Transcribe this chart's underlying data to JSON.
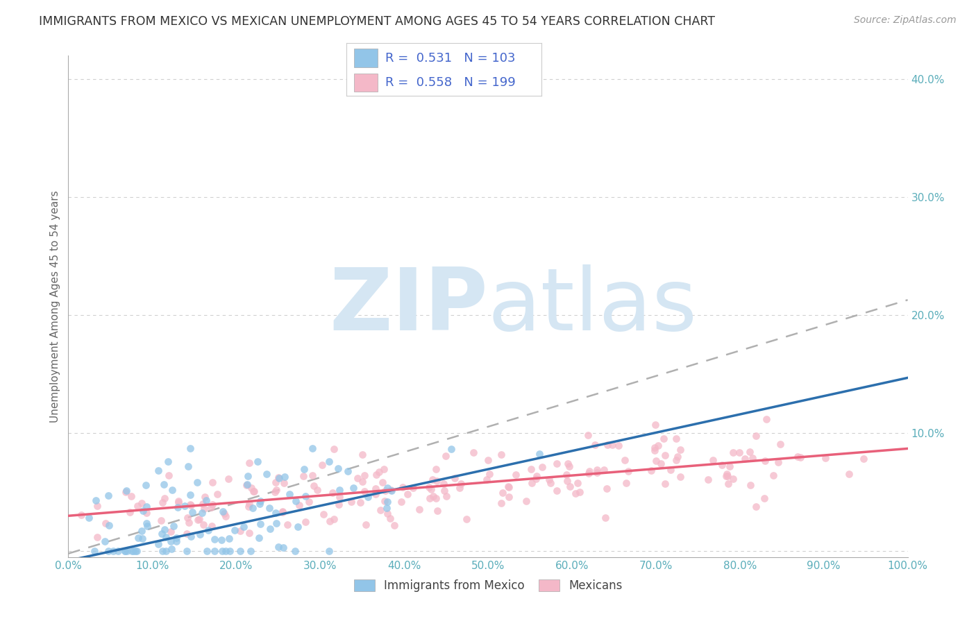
{
  "title": "IMMIGRANTS FROM MEXICO VS MEXICAN UNEMPLOYMENT AMONG AGES 45 TO 54 YEARS CORRELATION CHART",
  "source": "Source: ZipAtlas.com",
  "ylabel": "Unemployment Among Ages 45 to 54 years",
  "x_tick_labels": [
    "0.0%",
    "10.0%",
    "20.0%",
    "30.0%",
    "40.0%",
    "50.0%",
    "60.0%",
    "70.0%",
    "80.0%",
    "90.0%",
    "100.0%"
  ],
  "y_tick_labels": [
    "",
    "10.0%",
    "20.0%",
    "30.0%",
    "40.0%"
  ],
  "xlim": [
    0.0,
    1.0
  ],
  "ylim": [
    -0.005,
    0.42
  ],
  "blue_R": 0.531,
  "blue_N": 103,
  "pink_R": 0.558,
  "pink_N": 199,
  "blue_scatter_color": "#92c5e8",
  "pink_scatter_color": "#f4b8c8",
  "blue_line_color": "#2c6fad",
  "pink_line_color": "#e8607a",
  "dashed_line_color": "#b0b0b0",
  "watermark_color": "#d5e6f3",
  "watermark_text_zip": "ZIP",
  "watermark_text_atlas": "atlas",
  "legend_label_blue": "Immigrants from Mexico",
  "legend_label_pink": "Mexicans",
  "background_color": "#ffffff",
  "grid_color": "#d0d0d0",
  "title_color": "#333333",
  "axis_label_color": "#666666",
  "tick_color": "#5aadba",
  "legend_text_color": "#444455",
  "legend_value_color": "#4466cc",
  "seed": 42,
  "blue_intercept": -0.008,
  "blue_slope": 0.155,
  "pink_intercept": 0.03,
  "pink_slope": 0.057,
  "dashed_intercept": -0.002,
  "dashed_slope": 0.215
}
